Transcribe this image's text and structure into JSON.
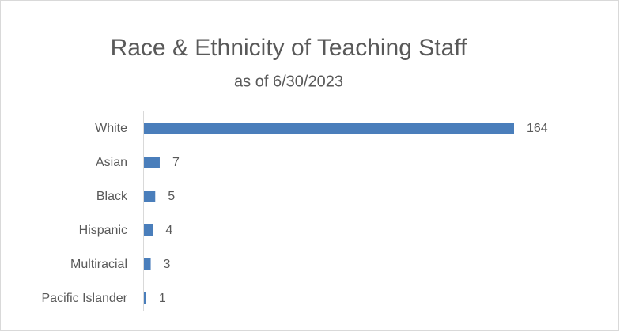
{
  "chart_data": {
    "type": "bar",
    "orientation": "horizontal",
    "title": "Race & Ethnicity of Teaching Staff",
    "subtitle": "as of 6/30/2023",
    "categories": [
      "White",
      "Asian",
      "Black",
      "Hispanic",
      "Multiracial",
      "Pacific Islander"
    ],
    "values": [
      164,
      7,
      5,
      4,
      3,
      1
    ],
    "color": "#4a7ebb"
  }
}
